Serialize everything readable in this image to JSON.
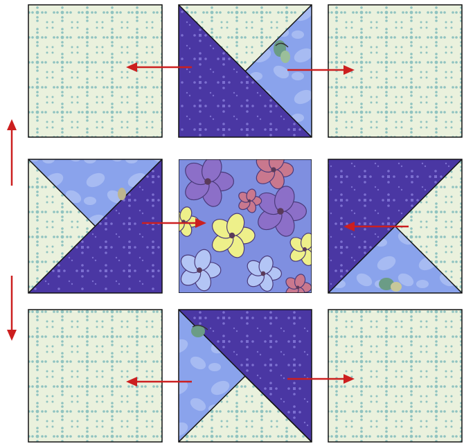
{
  "colors": {
    "light_fabric": "#eaf1dd",
    "light_dot": "#8fc3c0",
    "dark_fabric": "#4a37a3",
    "dark_dot": "#7c6fd0",
    "blue_fabric": "#8aa3ec",
    "blue_petal": "#b3c5f5",
    "floral_bg": "#7f8fe0",
    "floral_purple": "#8c6fc8",
    "floral_yellow": "#eef08a",
    "floral_pink": "#c9788e",
    "seam_line": "#111111",
    "arrow": "#cc1f1f"
  },
  "icons": {
    "arrow": "arrow-icon",
    "butterfly": "butterfly-icon"
  },
  "blocks": [
    {
      "name": "block-r1-c1",
      "kind": "plain-light"
    },
    {
      "name": "block-r1-c2",
      "kind": "hst"
    },
    {
      "name": "block-r1-c3",
      "kind": "plain-light"
    },
    {
      "name": "block-r2-c1",
      "kind": "hst"
    },
    {
      "name": "block-r2-c2",
      "kind": "floral-center"
    },
    {
      "name": "block-r2-c3",
      "kind": "hst"
    },
    {
      "name": "block-r3-c1",
      "kind": "plain-light"
    },
    {
      "name": "block-r3-c2",
      "kind": "hst"
    },
    {
      "name": "block-r3-c3",
      "kind": "plain-light"
    }
  ],
  "arrows": [
    {
      "name": "arrow-r1-left",
      "direction": "left"
    },
    {
      "name": "arrow-r1-right",
      "direction": "right"
    },
    {
      "name": "arrow-r2-center",
      "direction": "right"
    },
    {
      "name": "arrow-r2-left",
      "direction": "left"
    },
    {
      "name": "arrow-r3-left",
      "direction": "left"
    },
    {
      "name": "arrow-r3-right",
      "direction": "right"
    },
    {
      "name": "arrow-side-up",
      "direction": "up"
    },
    {
      "name": "arrow-side-down",
      "direction": "down"
    }
  ]
}
